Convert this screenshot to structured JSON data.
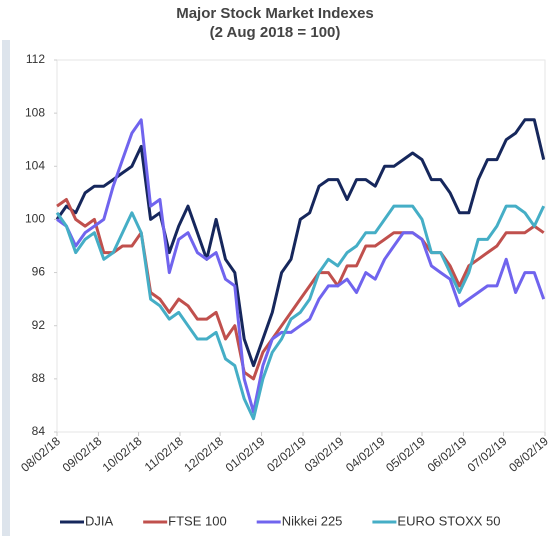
{
  "chart_data": {
    "type": "line",
    "title": "Major Stock Market Indexes",
    "subtitle": "(2 Aug 2018 = 100)",
    "x": [
      "08/02/18",
      "08/09/18",
      "08/16/18",
      "08/23/18",
      "08/30/18",
      "09/06/18",
      "09/13/18",
      "09/20/18",
      "09/27/18",
      "10/04/18",
      "10/11/18",
      "10/18/18",
      "10/25/18",
      "11/01/18",
      "11/08/18",
      "11/15/18",
      "11/22/18",
      "11/29/18",
      "12/06/18",
      "12/13/18",
      "12/20/18",
      "12/27/18",
      "01/03/19",
      "01/10/19",
      "01/17/19",
      "01/24/19",
      "01/31/19",
      "02/07/19",
      "02/14/19",
      "02/21/19",
      "02/28/19",
      "03/07/19",
      "03/14/19",
      "03/21/19",
      "03/28/19",
      "04/04/19",
      "04/11/19",
      "04/18/19",
      "04/25/19",
      "05/02/19",
      "05/09/19",
      "05/16/19",
      "05/23/19",
      "05/30/19",
      "06/06/19",
      "06/13/19",
      "06/20/19",
      "06/27/19",
      "07/04/19",
      "07/11/19",
      "07/18/19",
      "07/25/19",
      "08/01/19"
    ],
    "series": [
      {
        "name": "DJIA",
        "color": "#16275c",
        "values": [
          100,
          101,
          100.5,
          102,
          102.5,
          102.5,
          103,
          103.5,
          104,
          105.5,
          100,
          100.5,
          97.5,
          99.5,
          101,
          99,
          97,
          100,
          97,
          96,
          91,
          89,
          91,
          93,
          96,
          97,
          100,
          100.5,
          102.5,
          103,
          103,
          101.5,
          103,
          103,
          102.5,
          104,
          104,
          104.5,
          105,
          104.5,
          103,
          103,
          102,
          100.5,
          100.5,
          103,
          104.5,
          104.5,
          106,
          106.5,
          107.5,
          107.5,
          104.5
        ]
      },
      {
        "name": "FTSE 100",
        "color": "#c0504d",
        "values": [
          101,
          101.5,
          100,
          99.5,
          100,
          97.5,
          97.5,
          98,
          98,
          99,
          94.5,
          94,
          93,
          94,
          93.5,
          92.5,
          92.5,
          93,
          91,
          92,
          88.5,
          88,
          90,
          91,
          92,
          93,
          94,
          95,
          96,
          96,
          95,
          96.5,
          96.5,
          98,
          98,
          98.5,
          99,
          99,
          99,
          98.5,
          97.5,
          97.5,
          96.5,
          95,
          96.5,
          97,
          97.5,
          98,
          99,
          99,
          99,
          99.5,
          99
        ]
      },
      {
        "name": "Nikkei 225",
        "color": "#7064ee",
        "values": [
          100,
          99.5,
          98,
          99,
          99.5,
          100,
          102.5,
          104.5,
          106.5,
          107.5,
          101,
          101.5,
          96,
          98.5,
          99,
          97.5,
          97,
          97.5,
          95.5,
          95,
          88,
          85.5,
          89,
          91,
          91.5,
          91.5,
          92,
          92.5,
          94,
          95,
          95,
          95.5,
          94.5,
          96,
          95.5,
          97,
          98,
          99,
          99,
          98.5,
          96.5,
          96,
          95.5,
          93.5,
          94,
          94.5,
          95,
          95,
          97,
          94.5,
          96,
          96,
          94
        ]
      },
      {
        "name": "EURO STOXX 50",
        "color": "#45aec6",
        "values": [
          100.5,
          99.5,
          97.5,
          98.5,
          99,
          97,
          97.5,
          99,
          100.5,
          99,
          94,
          93.5,
          92.5,
          93,
          92,
          91,
          91,
          91.5,
          89.5,
          89,
          86.5,
          85,
          88,
          90,
          91,
          92.5,
          93,
          94,
          96,
          97,
          96.5,
          97.5,
          98,
          99,
          99,
          100,
          101,
          101,
          101,
          100,
          97.5,
          97.5,
          96,
          94.5,
          96,
          98.5,
          98.5,
          99.5,
          101,
          101,
          100.5,
          99.5,
          101
        ]
      }
    ],
    "xlim": [
      "08/02/18",
      "08/02/19"
    ],
    "xticks": [
      "08/02/18",
      "09/02/18",
      "10/02/18",
      "11/02/18",
      "12/02/18",
      "01/02/19",
      "02/02/19",
      "03/02/19",
      "04/02/19",
      "05/02/19",
      "06/02/19",
      "07/02/19",
      "08/02/19"
    ],
    "ylim": [
      84,
      112
    ],
    "yticks": [
      84,
      88,
      92,
      96,
      100,
      104,
      108,
      112
    ]
  }
}
